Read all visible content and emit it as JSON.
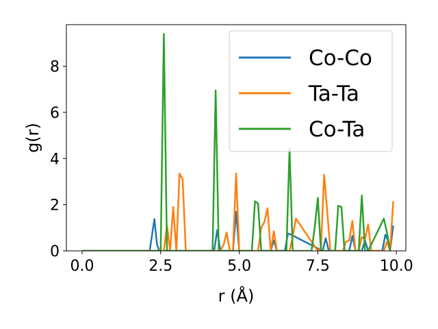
{
  "chart_data": {
    "type": "line",
    "xlabel": "r (Å)",
    "ylabel": "g(r)",
    "xlim": [
      -0.5,
      10.3
    ],
    "ylim": [
      0,
      9.8
    ],
    "x_ticks": [
      0.0,
      2.5,
      5.0,
      7.5,
      10.0
    ],
    "x_tick_labels": [
      "0.0",
      "2.5",
      "5.0",
      "7.5",
      "10.0"
    ],
    "y_ticks": [
      0,
      2,
      4,
      6,
      8
    ],
    "y_tick_labels": [
      "0",
      "2",
      "4",
      "6",
      "8"
    ],
    "grid": false,
    "legend_position": "upper-right",
    "series": [
      {
        "name": "Co-Co",
        "color": "#1f77b4",
        "x": [
          0.0,
          2.15,
          2.3,
          2.38,
          2.45,
          4.2,
          4.3,
          4.4,
          4.8,
          4.9,
          5.0,
          6.0,
          6.1,
          6.2,
          6.45,
          6.55,
          6.65,
          7.65,
          7.75,
          7.85,
          8.5,
          8.6,
          8.7,
          8.9,
          9.0,
          9.1,
          9.55,
          9.65,
          9.75,
          9.8,
          9.9
        ],
        "y": [
          0,
          0,
          1.38,
          0.3,
          0,
          0,
          0.9,
          0,
          0,
          1.7,
          0,
          0,
          0.45,
          0,
          0,
          0.75,
          0.7,
          0,
          0.55,
          0,
          0,
          0.65,
          0,
          0,
          0.45,
          0,
          0,
          0.7,
          0.4,
          0,
          1.1
        ]
      },
      {
        "name": "Ta-Ta",
        "color": "#ff7f0e",
        "x": [
          0.0,
          2.6,
          2.7,
          2.8,
          2.9,
          3.0,
          3.1,
          3.2,
          3.3,
          4.4,
          4.5,
          4.6,
          4.7,
          4.8,
          4.9,
          5.0,
          5.5,
          5.6,
          5.7,
          5.8,
          5.9,
          6.0,
          6.1,
          6.2,
          6.6,
          6.7,
          6.8,
          7.5,
          7.6,
          7.7,
          7.8,
          7.9,
          8.3,
          8.4,
          8.5,
          8.6,
          8.7,
          8.8,
          8.9,
          9.0,
          9.1,
          9.2,
          9.6,
          9.7,
          9.8,
          9.9
        ],
        "y": [
          0,
          0,
          1.1,
          0,
          1.9,
          0,
          3.35,
          3.1,
          0,
          0,
          0.25,
          0.8,
          0,
          0,
          3.35,
          0,
          0,
          0,
          1.0,
          1.25,
          1.85,
          0,
          0.85,
          0,
          0,
          0.6,
          1.4,
          0,
          0.15,
          3.3,
          1.7,
          0,
          0,
          0.4,
          0.45,
          1.3,
          0,
          0,
          0.6,
          0.5,
          1.15,
          0,
          0,
          0.4,
          0,
          2.15
        ]
      },
      {
        "name": "Co-Ta",
        "color": "#2ca02c",
        "x": [
          0.0,
          2.5,
          2.6,
          2.7,
          2.8,
          4.15,
          4.25,
          4.35,
          4.45,
          5.3,
          5.4,
          5.5,
          5.6,
          5.7,
          6.4,
          6.5,
          6.6,
          6.7,
          6.8,
          7.3,
          7.4,
          7.5,
          7.6,
          7.7,
          8.05,
          8.15,
          8.25,
          8.35,
          8.8,
          8.9,
          9.0,
          9.1,
          9.6,
          9.7,
          9.8
        ],
        "y": [
          0,
          0,
          9.4,
          0,
          0,
          0,
          6.95,
          0,
          0,
          0,
          0,
          2.15,
          2.05,
          0,
          0,
          0,
          4.45,
          0,
          0,
          0,
          1.0,
          2.3,
          0,
          0,
          0,
          1.95,
          1.9,
          0,
          0,
          2.4,
          0,
          0,
          1.4,
          0.8,
          0
        ]
      }
    ]
  }
}
